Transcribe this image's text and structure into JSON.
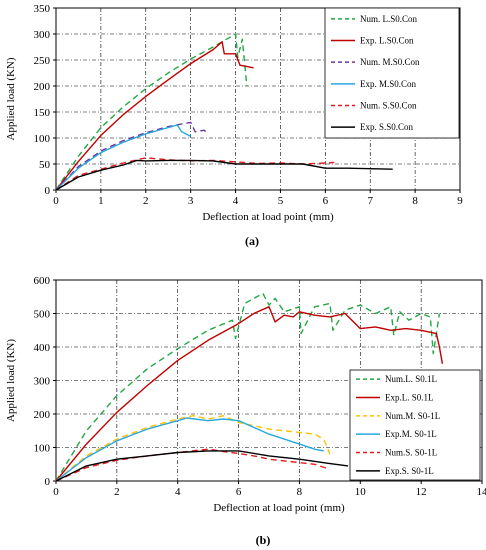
{
  "chart_data": [
    {
      "type": "line",
      "panel": "(a)",
      "xlabel": "Deflection at load point (mm)",
      "ylabel": "Applied load (KN)",
      "xlim": [
        0,
        9
      ],
      "ylim": [
        0,
        350
      ],
      "xticks": [
        0,
        1,
        2,
        3,
        4,
        5,
        6,
        7,
        8,
        9
      ],
      "yticks": [
        0,
        50,
        100,
        150,
        200,
        250,
        300,
        350
      ],
      "grid": true,
      "legend_position": "top-right",
      "series": [
        {
          "name": "Num. L.S0.Con",
          "color": "#22a845",
          "dash": "dashed",
          "x": [
            0,
            0.5,
            1,
            1.5,
            2,
            2.5,
            3,
            3.5,
            3.8,
            4.0,
            4.05,
            4.15,
            4.25
          ],
          "y": [
            0,
            65,
            120,
            160,
            195,
            225,
            252,
            275,
            290,
            300,
            255,
            290,
            200
          ]
        },
        {
          "name": "Exp. L.S0.Con",
          "color": "#c00000",
          "dash": "solid",
          "x": [
            0,
            0.5,
            1,
            1.5,
            2,
            2.5,
            3,
            3.5,
            3.7,
            3.75,
            4.0,
            4.1,
            4.4
          ],
          "y": [
            0,
            55,
            105,
            145,
            180,
            212,
            243,
            270,
            285,
            262,
            262,
            240,
            235
          ]
        },
        {
          "name": "Num. M.S0.Con",
          "color": "#7030a0",
          "dash": "dashed",
          "x": [
            0,
            0.5,
            1,
            1.5,
            2,
            2.5,
            2.8,
            3.0,
            3.1,
            3.3,
            3.4
          ],
          "y": [
            0,
            45,
            75,
            95,
            110,
            122,
            127,
            130,
            112,
            115,
            107
          ]
        },
        {
          "name": "Exp. M.S0.Con",
          "color": "#29a7df",
          "dash": "solid",
          "x": [
            0,
            0.5,
            1,
            1.5,
            2,
            2.5,
            2.7,
            2.8,
            3.0
          ],
          "y": [
            0,
            42,
            72,
            92,
            108,
            120,
            125,
            112,
            103
          ]
        },
        {
          "name": "Num. S.S0.Con",
          "color": "#e41a1c",
          "dash": "dashed",
          "x": [
            0,
            0.5,
            1,
            1.5,
            2,
            2.5,
            3,
            3.5,
            4,
            4.5,
            5,
            5.5,
            6,
            6.2
          ],
          "y": [
            0,
            28,
            40,
            52,
            62,
            58,
            56,
            57,
            54,
            51,
            52,
            50,
            52,
            53
          ]
        },
        {
          "name": "Exp. S.S0.Con",
          "color": "#000000",
          "dash": "solid",
          "x": [
            0,
            0.5,
            1,
            1.5,
            1.8,
            2,
            2.5,
            3,
            3.5,
            4,
            4.5,
            5,
            5.5,
            6,
            6.5,
            7,
            7.5
          ],
          "y": [
            0,
            25,
            38,
            48,
            57,
            56,
            57,
            57,
            56,
            50,
            50,
            50,
            50,
            42,
            42,
            41,
            40
          ]
        }
      ]
    },
    {
      "type": "line",
      "panel": "(b)",
      "xlabel": "Deflection at load point (mm)",
      "ylabel": "Applied load (KN)",
      "xlim": [
        0,
        14
      ],
      "ylim": [
        0,
        600
      ],
      "xticks": [
        0,
        2,
        4,
        6,
        8,
        10,
        12,
        14
      ],
      "yticks": [
        0,
        100,
        200,
        300,
        400,
        500,
        600
      ],
      "grid": true,
      "legend_position": "bottom-right",
      "series": [
        {
          "name": "Num.L. S0.1L",
          "color": "#22a845",
          "dash": "dashed",
          "x": [
            0,
            1,
            2,
            3,
            4,
            5,
            5.8,
            5.9,
            6.2,
            6.8,
            7.0,
            7.2,
            7.5,
            8.0,
            8.05,
            8.5,
            9.0,
            9.1,
            9.5,
            10.0,
            10.5,
            11.0,
            11.1,
            11.3,
            11.6,
            12.0,
            12.3,
            12.4,
            12.6
          ],
          "y": [
            0,
            150,
            255,
            335,
            395,
            450,
            480,
            425,
            530,
            560,
            525,
            545,
            505,
            520,
            440,
            520,
            530,
            450,
            510,
            525,
            500,
            520,
            435,
            505,
            480,
            500,
            490,
            380,
            500
          ]
        },
        {
          "name": "Exp.L. S0.1L",
          "color": "#c00000",
          "dash": "solid",
          "x": [
            0,
            1,
            2,
            3,
            4,
            5,
            6,
            6.5,
            7.0,
            7.2,
            7.5,
            7.8,
            8.0,
            8.5,
            9.0,
            9.5,
            10.0,
            10.5,
            11.0,
            11.5,
            12.0,
            12.5,
            12.6,
            12.7
          ],
          "y": [
            0,
            110,
            205,
            285,
            360,
            420,
            470,
            500,
            520,
            475,
            495,
            490,
            505,
            495,
            490,
            500,
            455,
            460,
            450,
            455,
            450,
            440,
            400,
            350
          ]
        },
        {
          "name": "Num.M. S0-1L",
          "color": "#ffc000",
          "dash": "dashed",
          "x": [
            0,
            1,
            2,
            3,
            4,
            4.5,
            5,
            5.5,
            6,
            6.5,
            7,
            7.5,
            8,
            8.5,
            8.8,
            9.0
          ],
          "y": [
            0,
            75,
            125,
            160,
            185,
            195,
            185,
            195,
            175,
            165,
            155,
            150,
            145,
            140,
            125,
            80
          ]
        },
        {
          "name": "Exp.M. S0-1L",
          "color": "#29a7df",
          "dash": "solid",
          "x": [
            0,
            1,
            2,
            3,
            4,
            4.3,
            5,
            5.5,
            6,
            6.5,
            7,
            7.5,
            8,
            8.5,
            8.8
          ],
          "y": [
            0,
            70,
            120,
            155,
            180,
            188,
            180,
            185,
            180,
            160,
            140,
            125,
            110,
            95,
            90
          ]
        },
        {
          "name": "Num.S. S0-1L",
          "color": "#e41a1c",
          "dash": "dashed",
          "x": [
            0,
            1,
            2,
            3,
            4,
            5,
            5.5,
            6,
            6.5,
            7,
            7.5,
            8,
            8.5,
            9.0
          ],
          "y": [
            0,
            40,
            62,
            75,
            85,
            95,
            88,
            82,
            75,
            65,
            60,
            55,
            50,
            35
          ]
        },
        {
          "name": "Exp.S. S0-1L",
          "color": "#000000",
          "dash": "solid",
          "x": [
            0,
            1,
            2,
            3,
            4,
            5,
            6,
            7,
            8,
            9,
            9.6
          ],
          "y": [
            0,
            45,
            65,
            75,
            85,
            90,
            90,
            75,
            65,
            52,
            45
          ]
        }
      ]
    }
  ]
}
